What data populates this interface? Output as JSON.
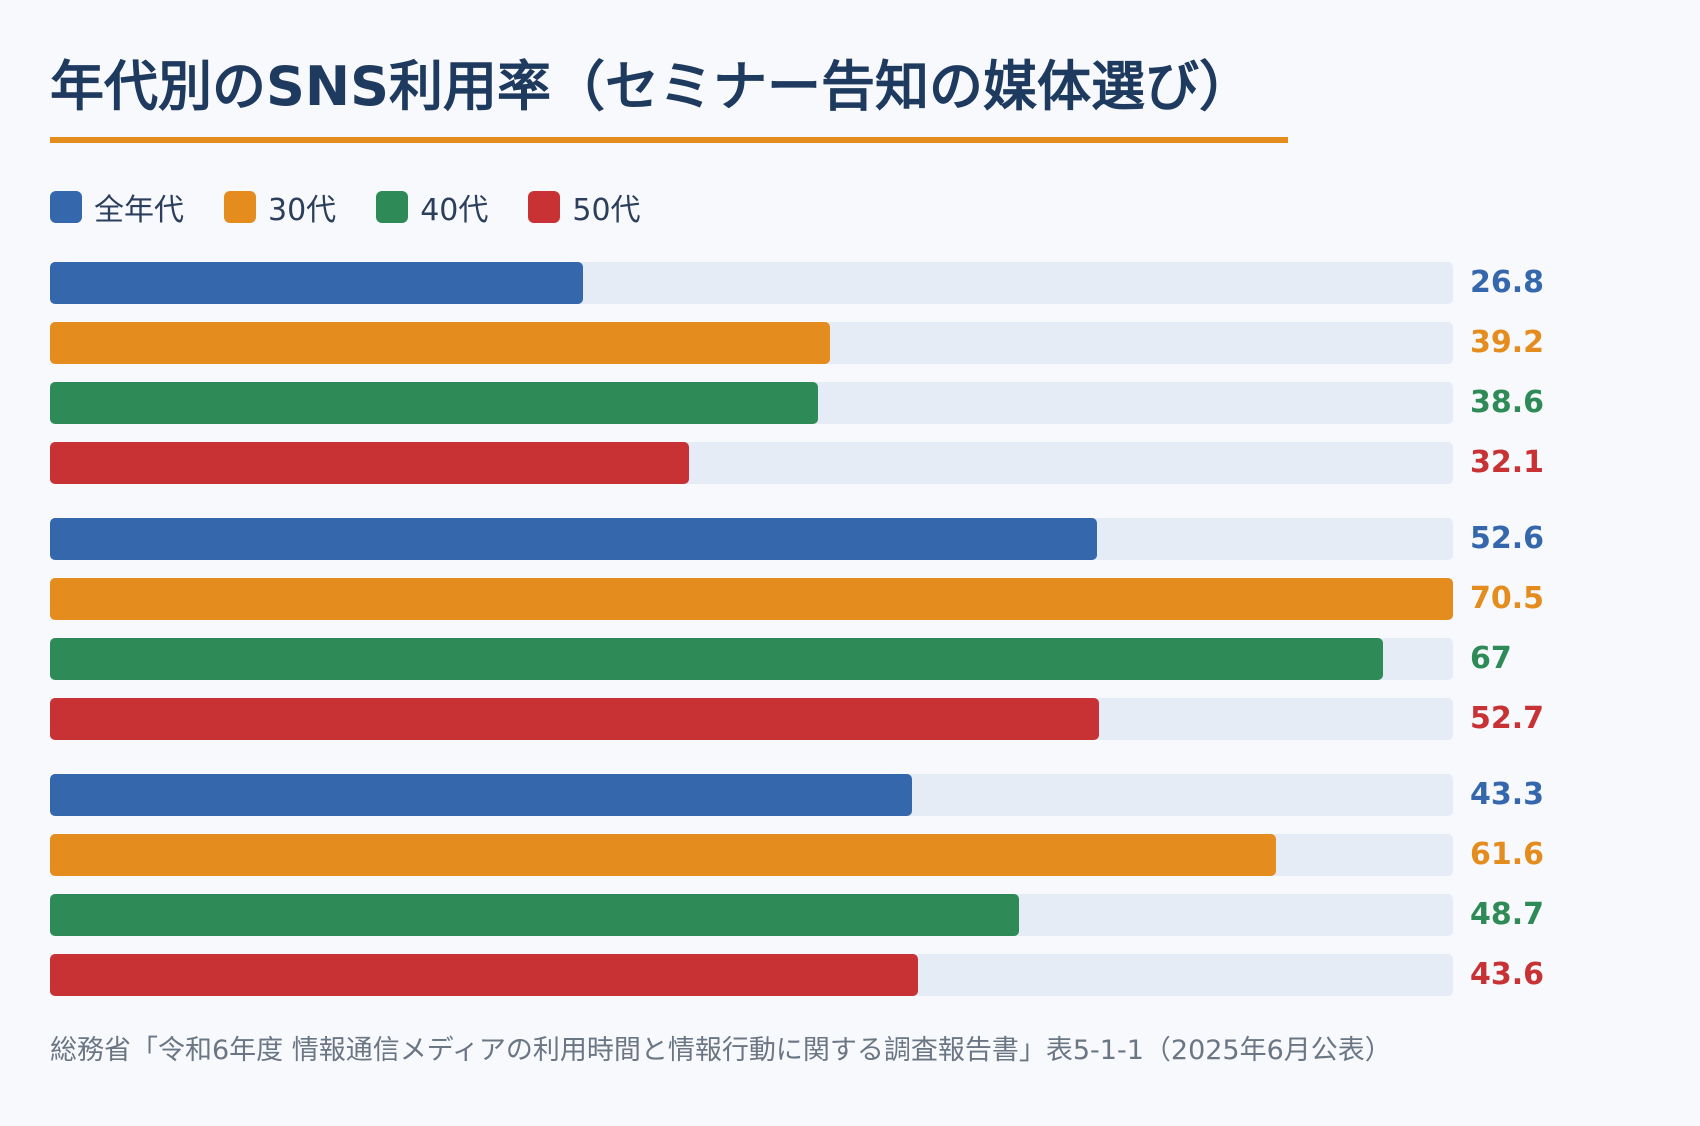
{
  "title": "年代別のSNS利用率（セミナー告知の媒体選び）",
  "source": "総務省「令和6年度 情報通信メディアの利用時間と情報行動に関する調査報告書」表5-1-1（2025年6月公表）",
  "colors": {
    "title": "#1f3a5f",
    "accent_rule": "#e58c1f",
    "track": "#e5ecf5",
    "background": "#f7f9fc"
  },
  "chart_data": {
    "type": "bar",
    "orientation": "horizontal",
    "xlim": [
      0,
      70.5
    ],
    "grid": false,
    "legend_position": "top-left",
    "categories": [
      "",
      "",
      ""
    ],
    "series": [
      {
        "name": "全年代",
        "color": "#3567ad",
        "values": [
          26.8,
          52.6,
          43.3
        ]
      },
      {
        "name": "30代",
        "color": "#e58c1f",
        "values": [
          39.2,
          70.5,
          61.6
        ]
      },
      {
        "name": "40代",
        "color": "#2e8b57",
        "values": [
          38.6,
          67,
          48.7
        ]
      },
      {
        "name": "50代",
        "color": "#c93234",
        "values": [
          32.1,
          52.7,
          43.6
        ]
      }
    ],
    "value_labels": [
      [
        "26.8",
        "39.2",
        "38.6",
        "32.1"
      ],
      [
        "52.6",
        "70.5",
        "67",
        "52.7"
      ],
      [
        "43.3",
        "61.6",
        "48.7",
        "43.6"
      ]
    ]
  }
}
